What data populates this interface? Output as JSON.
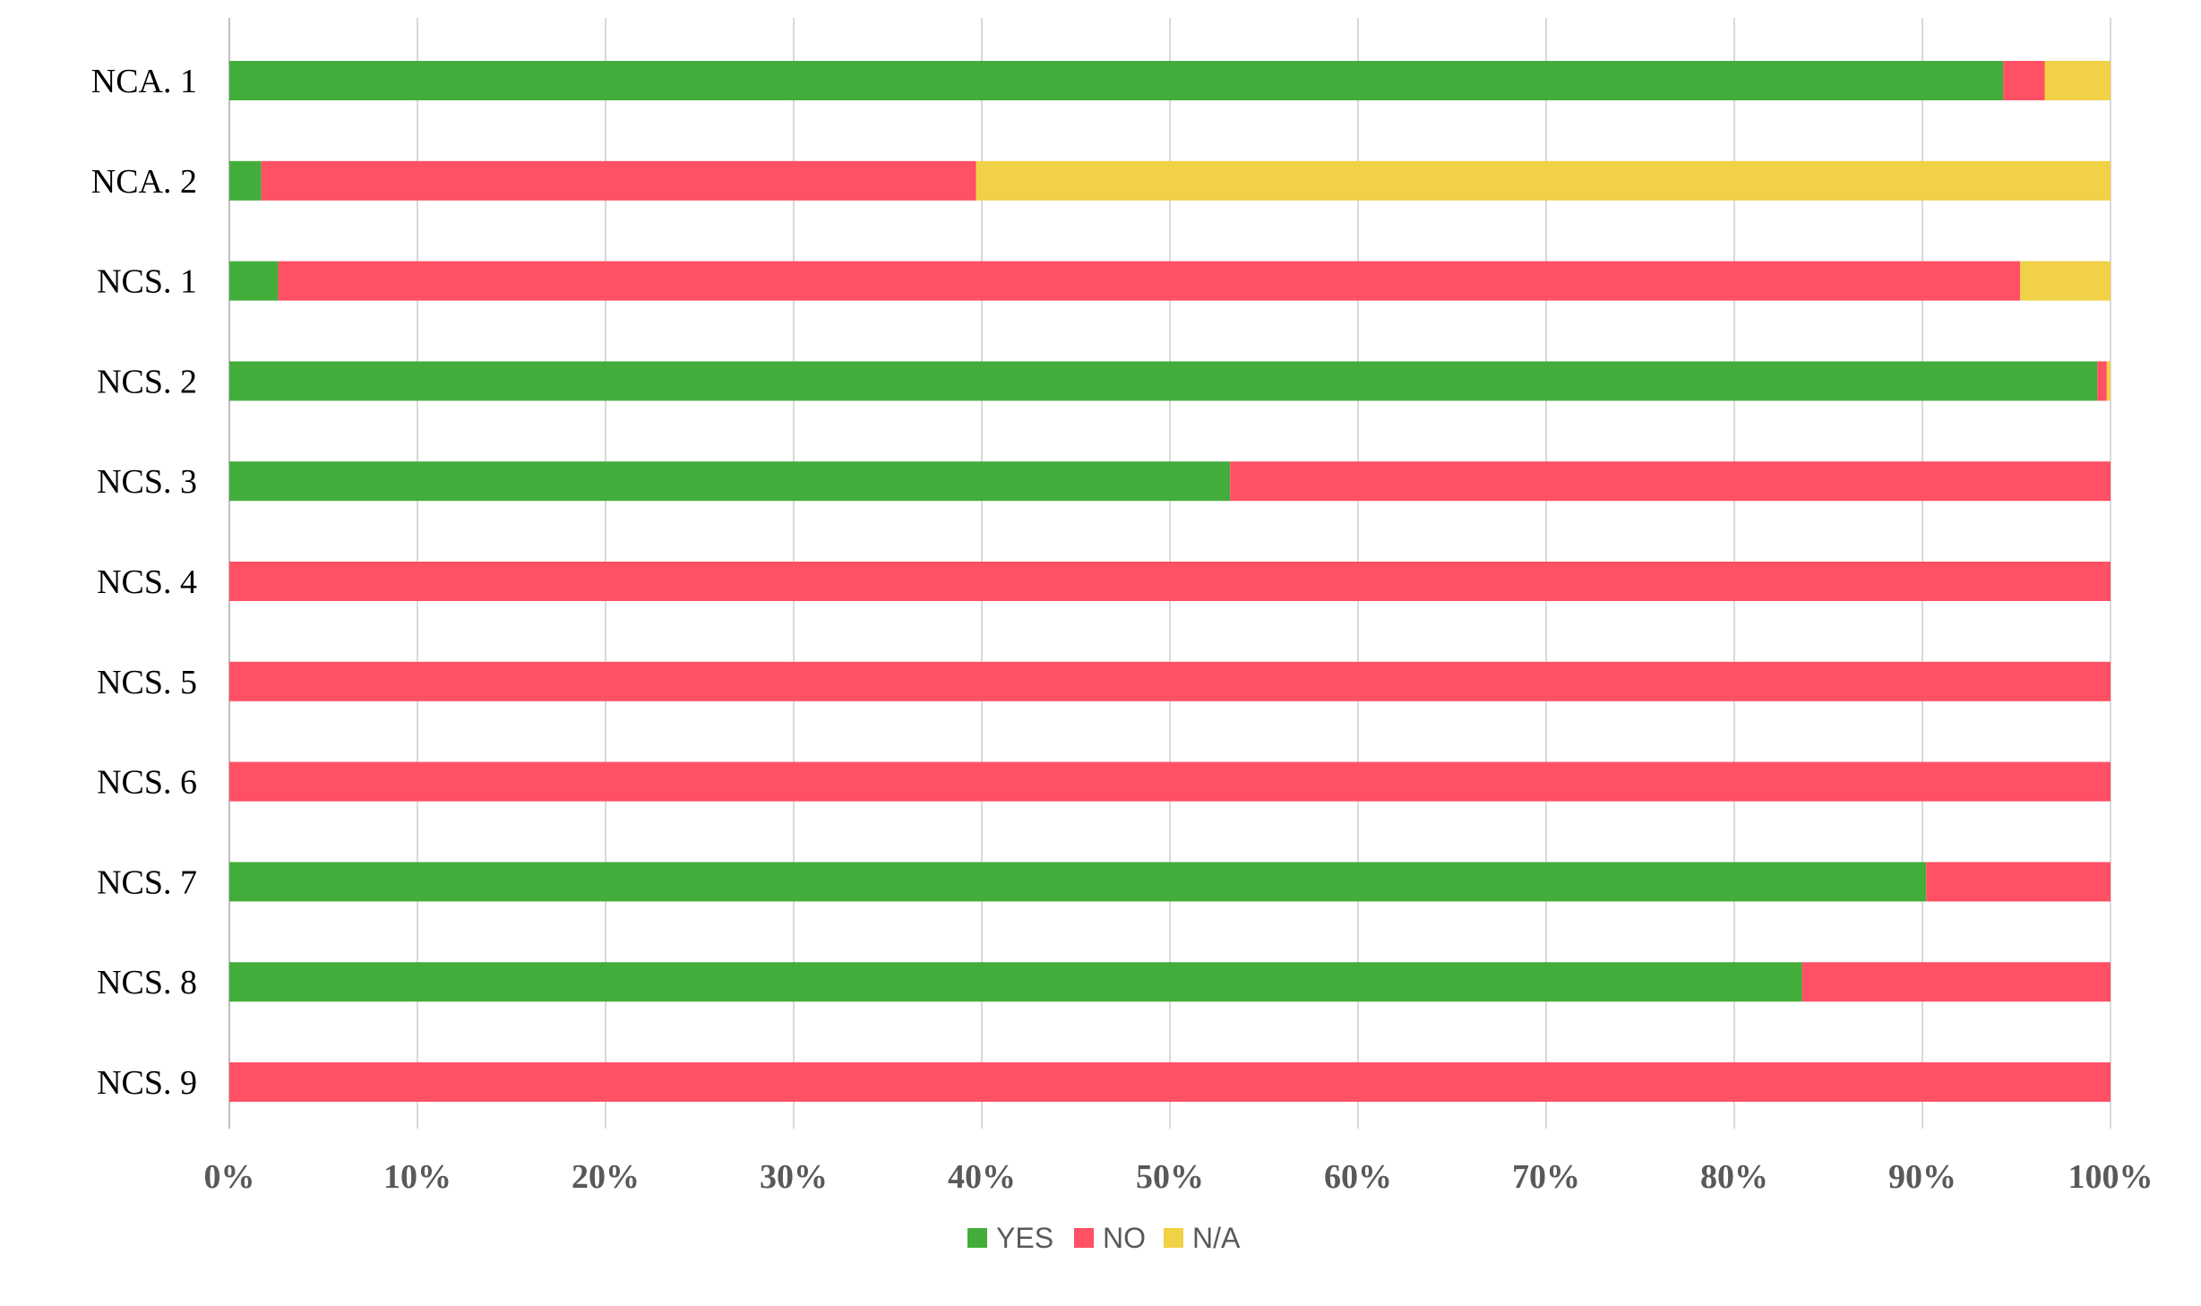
{
  "chart_data": {
    "type": "bar",
    "orientation": "horizontal",
    "stacked": "percent",
    "categories": [
      "NCA. 1",
      "NCA. 2",
      "NCS. 1",
      "NCS. 2",
      "NCS. 3",
      "NCS. 4",
      "NCS. 5",
      "NCS. 6",
      "NCS. 7",
      "NCS. 8",
      "NCS. 9"
    ],
    "series": [
      {
        "name": "YES",
        "color": "#43ad3c",
        "values": [
          94.3,
          1.7,
          2.6,
          99.3,
          53.2,
          0,
          0,
          0,
          90.2,
          83.6,
          0
        ]
      },
      {
        "name": "NO",
        "color": "#ff5064",
        "values": [
          2.2,
          38.0,
          92.6,
          0.5,
          46.8,
          100,
          100,
          100,
          9.8,
          16.4,
          100
        ]
      },
      {
        "name": "N/A",
        "color": "#f1d145",
        "values": [
          3.5,
          60.3,
          4.8,
          0.2,
          0,
          0,
          0,
          0,
          0,
          0,
          0
        ]
      }
    ],
    "xlim": [
      0,
      100
    ],
    "x_ticks": [
      "0%",
      "10%",
      "20%",
      "30%",
      "40%",
      "50%",
      "60%",
      "70%",
      "80%",
      "90%",
      "100%"
    ],
    "grid": true,
    "legend_position": "bottom",
    "title": "",
    "xlabel": "",
    "ylabel": ""
  }
}
